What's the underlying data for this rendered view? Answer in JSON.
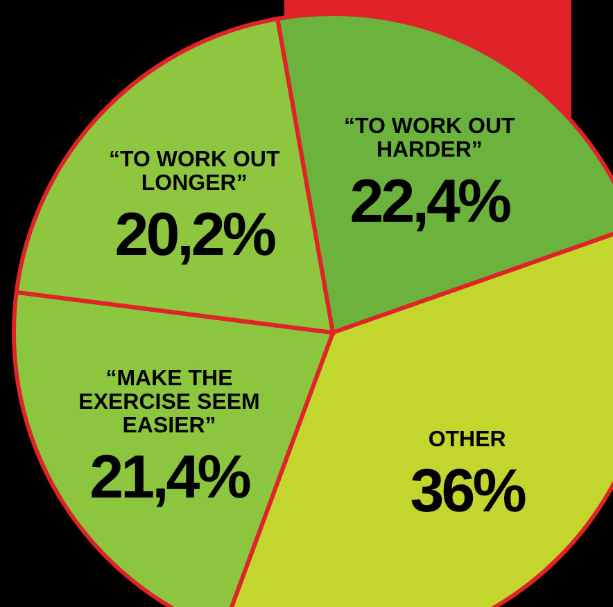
{
  "chart_data": {
    "type": "pie",
    "categories": [
      "“TO WORK OUT HARDER”",
      "OTHER",
      "“MAKE THE EXERCISE SEEM EASIER”",
      "“TO WORK OUT LONGER”"
    ],
    "values": [
      22.4,
      36,
      21.4,
      20.2
    ],
    "value_labels": [
      "22,4%",
      "36%",
      "21,4%",
      "20,2%"
    ],
    "colors": [
      "#6cb33e",
      "#c2d62e",
      "#8cc63f",
      "#8ec640"
    ],
    "legend": false
  }
}
